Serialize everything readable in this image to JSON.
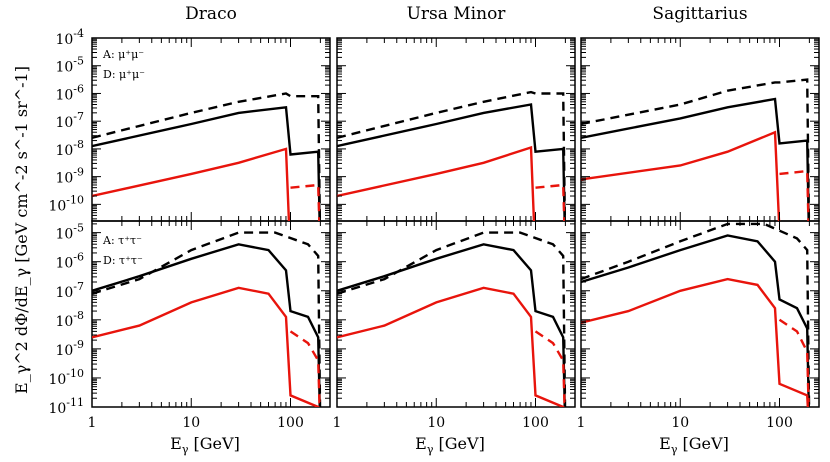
{
  "chart_data": {
    "type": "line",
    "columns": [
      "Draco",
      "Ursa Minor",
      "Sagittarius"
    ],
    "rows": [
      "mu+mu-",
      "tau+tau-"
    ],
    "xlabel": "E_γ [GeV]",
    "ylabel": "E_γ^2 dΦ/dE_γ [GeV cm^-2 s^-1 sr^-1]",
    "xscale": "log",
    "yscale": "log",
    "xlim": [
      1,
      250
    ],
    "ylim": [
      1e-11,
      0.0001
    ],
    "x_ticks": [
      "1",
      "10",
      "100"
    ],
    "y_ticks_top": [
      -10,
      -9,
      -8,
      -7,
      -6,
      -5,
      -4
    ],
    "y_ticks_bottom": [
      -11,
      -10,
      -9,
      -8,
      -7,
      -6,
      -5
    ],
    "legend_top": [
      "A: μ⁺μ⁻",
      "D: μ⁺μ⁻"
    ],
    "legend_bottom": [
      "A: τ⁺τ⁻",
      "D: τ⁺τ⁻"
    ],
    "series_note": "solid = cut at 100 GeV, dashed = cut at 200 GeV; black = upper limit set, red = lower set (log10 values)",
    "panels": {
      "mumu": {
        "Draco": {
          "black_solid": [
            [
              1,
              -7.9
            ],
            [
              10,
              -7.1
            ],
            [
              30,
              -6.7
            ],
            [
              90,
              -6.5
            ],
            [
              100,
              -8.2
            ],
            [
              190,
              -8.1
            ],
            [
              200,
              -12
            ]
          ],
          "black_dash": [
            [
              1,
              -7.6
            ],
            [
              10,
              -6.7
            ],
            [
              30,
              -6.3
            ],
            [
              90,
              -6.0
            ],
            [
              100,
              -6.1
            ],
            [
              190,
              -6.1
            ],
            [
              200,
              -12
            ]
          ],
          "red_solid": [
            [
              1,
              -9.7
            ],
            [
              10,
              -8.9
            ],
            [
              30,
              -8.5
            ],
            [
              90,
              -8.0
            ],
            [
              100,
              -12
            ]
          ],
          "red_dash": [
            [
              100,
              -9.4
            ],
            [
              190,
              -9.3
            ],
            [
              200,
              -12
            ]
          ]
        },
        "Ursa Minor": {
          "black_solid": [
            [
              1,
              -7.9
            ],
            [
              10,
              -7.1
            ],
            [
              30,
              -6.7
            ],
            [
              90,
              -6.4
            ],
            [
              100,
              -8.1
            ],
            [
              190,
              -8.0
            ],
            [
              200,
              -12
            ]
          ],
          "black_dash": [
            [
              1,
              -7.6
            ],
            [
              10,
              -6.7
            ],
            [
              30,
              -6.3
            ],
            [
              90,
              -5.95
            ],
            [
              100,
              -6.0
            ],
            [
              190,
              -6.0
            ],
            [
              200,
              -12
            ]
          ],
          "red_solid": [
            [
              1,
              -9.7
            ],
            [
              10,
              -8.9
            ],
            [
              30,
              -8.5
            ],
            [
              90,
              -7.95
            ],
            [
              100,
              -12
            ]
          ],
          "red_dash": [
            [
              100,
              -9.4
            ],
            [
              190,
              -9.3
            ],
            [
              200,
              -12
            ]
          ]
        },
        "Sagittarius": {
          "black_solid": [
            [
              1,
              -7.6
            ],
            [
              10,
              -6.9
            ],
            [
              30,
              -6.5
            ],
            [
              90,
              -6.2
            ],
            [
              100,
              -7.8
            ],
            [
              190,
              -7.7
            ],
            [
              200,
              -12
            ]
          ],
          "black_dash": [
            [
              1,
              -7.1
            ],
            [
              10,
              -6.4
            ],
            [
              30,
              -5.9
            ],
            [
              90,
              -5.6
            ],
            [
              100,
              -5.6
            ],
            [
              190,
              -5.5
            ],
            [
              200,
              -12
            ]
          ],
          "red_solid": [
            [
              1,
              -9.1
            ],
            [
              10,
              -8.6
            ],
            [
              30,
              -8.1
            ],
            [
              90,
              -7.4
            ],
            [
              100,
              -11.0
            ],
            [
              190,
              -11.0
            ],
            [
              200,
              -12
            ]
          ],
          "red_dash": [
            [
              100,
              -8.9
            ],
            [
              190,
              -8.8
            ],
            [
              200,
              -12
            ]
          ]
        }
      },
      "tautau": {
        "Draco": {
          "black_solid": [
            [
              1,
              -7.0
            ],
            [
              3,
              -6.5
            ],
            [
              10,
              -5.9
            ],
            [
              30,
              -5.4
            ],
            [
              60,
              -5.6
            ],
            [
              90,
              -6.3
            ],
            [
              100,
              -7.7
            ],
            [
              150,
              -7.9
            ],
            [
              190,
              -8.6
            ],
            [
              200,
              -12
            ]
          ],
          "black_dash": [
            [
              1,
              -7.1
            ],
            [
              3,
              -6.6
            ],
            [
              10,
              -5.6
            ],
            [
              30,
              -5.0
            ],
            [
              70,
              -5.0
            ],
            [
              150,
              -5.4
            ],
            [
              190,
              -5.8
            ],
            [
              200,
              -12
            ]
          ],
          "red_solid": [
            [
              1,
              -8.6
            ],
            [
              3,
              -8.2
            ],
            [
              10,
              -7.4
            ],
            [
              30,
              -6.9
            ],
            [
              60,
              -7.1
            ],
            [
              90,
              -7.9
            ],
            [
              100,
              -10.6
            ],
            [
              190,
              -11.0
            ],
            [
              200,
              -12
            ]
          ],
          "red_dash": [
            [
              100,
              -8.4
            ],
            [
              150,
              -8.8
            ],
            [
              190,
              -9.4
            ],
            [
              200,
              -12
            ]
          ]
        },
        "Ursa Minor": {
          "black_solid": [
            [
              1,
              -7.0
            ],
            [
              3,
              -6.5
            ],
            [
              10,
              -5.9
            ],
            [
              30,
              -5.4
            ],
            [
              60,
              -5.6
            ],
            [
              90,
              -6.3
            ],
            [
              100,
              -7.7
            ],
            [
              150,
              -7.9
            ],
            [
              190,
              -8.6
            ],
            [
              200,
              -12
            ]
          ],
          "black_dash": [
            [
              1,
              -7.1
            ],
            [
              3,
              -6.6
            ],
            [
              10,
              -5.6
            ],
            [
              30,
              -5.0
            ],
            [
              70,
              -5.0
            ],
            [
              150,
              -5.4
            ],
            [
              190,
              -5.8
            ],
            [
              200,
              -12
            ]
          ],
          "red_solid": [
            [
              1,
              -8.6
            ],
            [
              3,
              -8.2
            ],
            [
              10,
              -7.4
            ],
            [
              30,
              -6.9
            ],
            [
              60,
              -7.1
            ],
            [
              90,
              -7.9
            ],
            [
              100,
              -10.6
            ],
            [
              190,
              -11.0
            ],
            [
              200,
              -12
            ]
          ],
          "red_dash": [
            [
              100,
              -8.4
            ],
            [
              150,
              -8.8
            ],
            [
              190,
              -9.4
            ],
            [
              200,
              -12
            ]
          ]
        },
        "Sagittarius": {
          "black_solid": [
            [
              1,
              -6.7
            ],
            [
              3,
              -6.2
            ],
            [
              10,
              -5.6
            ],
            [
              30,
              -5.1
            ],
            [
              60,
              -5.3
            ],
            [
              90,
              -6.0
            ],
            [
              100,
              -7.3
            ],
            [
              150,
              -7.6
            ],
            [
              190,
              -8.3
            ],
            [
              200,
              -12
            ]
          ],
          "black_dash": [
            [
              1,
              -6.6
            ],
            [
              3,
              -6.0
            ],
            [
              10,
              -5.3
            ],
            [
              30,
              -4.7
            ],
            [
              70,
              -4.7
            ],
            [
              150,
              -5.2
            ],
            [
              190,
              -5.6
            ],
            [
              200,
              -12
            ]
          ],
          "red_solid": [
            [
              1,
              -8.1
            ],
            [
              3,
              -7.7
            ],
            [
              10,
              -7.0
            ],
            [
              30,
              -6.6
            ],
            [
              60,
              -6.8
            ],
            [
              90,
              -7.6
            ],
            [
              100,
              -10.2
            ],
            [
              190,
              -10.6
            ],
            [
              200,
              -12
            ]
          ],
          "red_dash": [
            [
              100,
              -8.0
            ],
            [
              150,
              -8.4
            ],
            [
              190,
              -9.1
            ],
            [
              200,
              -12
            ]
          ]
        }
      }
    }
  }
}
